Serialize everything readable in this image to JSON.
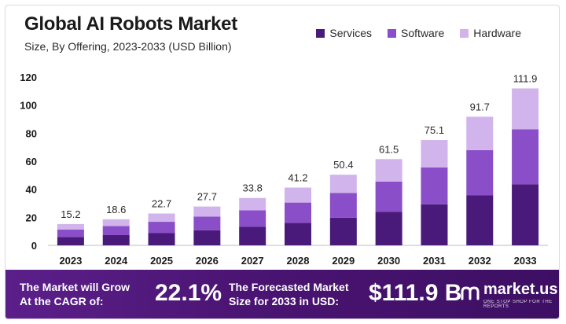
{
  "title": "Global AI Robots Market",
  "subtitle": "Size, By Offering, 2023-2033 (USD Billion)",
  "colors": {
    "services": "#4a1a7a",
    "software": "#8a4ec8",
    "hardware": "#d1b4ec"
  },
  "chart_data": {
    "type": "bar",
    "stacked": true,
    "categories": [
      "2023",
      "2024",
      "2025",
      "2026",
      "2027",
      "2028",
      "2029",
      "2030",
      "2031",
      "2032",
      "2033"
    ],
    "series": [
      {
        "name": "Services",
        "values": [
          6.0,
          7.3,
          8.9,
          10.8,
          13.2,
          16.1,
          19.7,
          24.0,
          29.3,
          35.8,
          43.6
        ]
      },
      {
        "name": "Software",
        "values": [
          5.3,
          6.5,
          7.9,
          9.7,
          11.8,
          14.4,
          17.6,
          21.5,
          26.3,
          32.1,
          39.2
        ]
      },
      {
        "name": "Hardware",
        "values": [
          3.9,
          4.8,
          5.9,
          7.2,
          8.8,
          10.7,
          13.1,
          16.0,
          19.5,
          23.8,
          29.1
        ]
      }
    ],
    "totals": [
      "15.2",
      "18.6",
      "22.7",
      "27.7",
      "33.8",
      "41.2",
      "50.4",
      "61.5",
      "75.1",
      "91.7",
      "111.9"
    ],
    "y_ticks": [
      "0",
      "20",
      "40",
      "60",
      "80",
      "100",
      "120"
    ],
    "ylim": [
      0,
      120
    ],
    "legend": [
      "Services",
      "Software",
      "Hardware"
    ],
    "legend_position": "top-right",
    "grid": false
  },
  "footer": {
    "cagr_label_line1": "The Market will Grow",
    "cagr_label_line2": "At the CAGR of:",
    "cagr_value": "22.1%",
    "forecast_label_line1": "The Forecasted Market",
    "forecast_label_line2": "Size for 2033 in USD:",
    "forecast_value": "$111.9 B",
    "logo_icon": "market-us-logo-icon",
    "logo_name": "market.us",
    "logo_tagline": "ONE STOP SHOP FOR THE REPORTS"
  }
}
